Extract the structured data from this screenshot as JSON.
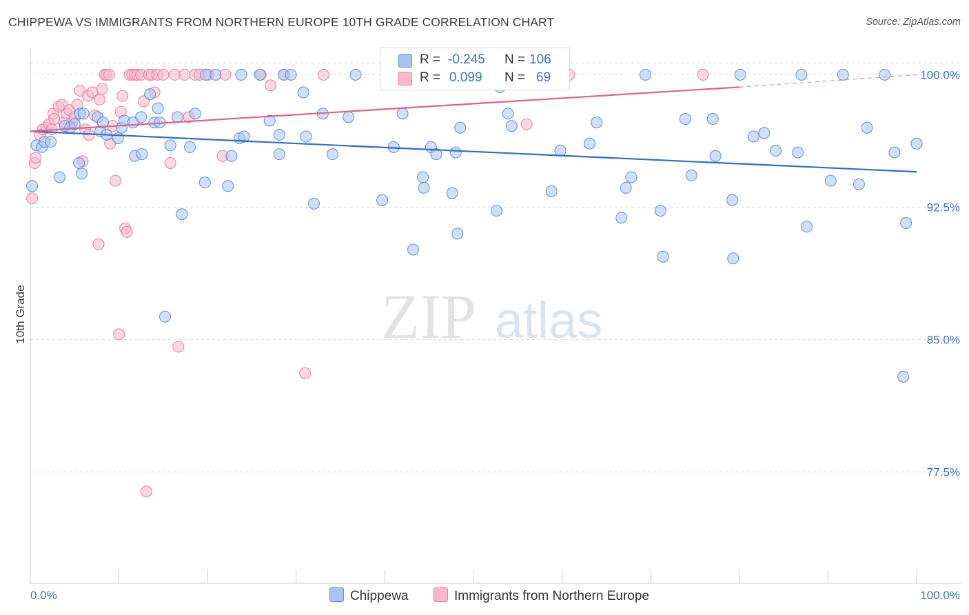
{
  "title": "CHIPPEWA VS IMMIGRANTS FROM NORTHERN EUROPE 10TH GRADE CORRELATION CHART",
  "source": "Source: ZipAtlas.com",
  "watermark": {
    "zip": "ZIP",
    "atlas": "atlas"
  },
  "colors": {
    "blue_fill": "#a9c5ee",
    "blue_stroke": "#5b8fd6",
    "blue_line": "#2b6ccc",
    "pink_fill": "#f6b8cb",
    "pink_stroke": "#e87ea0",
    "pink_line": "#e0608a",
    "tick_label": "#3c6fc4",
    "grid": "#d8d8d8"
  },
  "legend": {
    "rows": [
      {
        "r_label": "R =",
        "r_value": "-0.245",
        "n_label": "N =",
        "n_value": "106"
      },
      {
        "r_label": "R =",
        "r_value": "0.099",
        "n_label": "N =",
        "n_value": "69"
      }
    ],
    "series_names": [
      "Chippewa",
      "Immigrants from Northern Europe"
    ]
  },
  "chart_data": {
    "type": "scatter",
    "title": "CHIPPEWA VS IMMIGRANTS FROM NORTHERN EUROPE 10TH GRADE CORRELATION CHART",
    "xlabel": "",
    "ylabel": "10th Grade",
    "xlim": [
      0,
      100
    ],
    "ylim": [
      71.2,
      101.5
    ],
    "x_tick_labels": [
      "0.0%",
      "100.0%"
    ],
    "y_ticks": [
      77.5,
      85.0,
      92.5,
      100.0
    ],
    "y_tick_labels": [
      "77.5%",
      "85.0%",
      "92.5%",
      "100.0%"
    ],
    "grid": true,
    "legend_position": "top-center",
    "series": [
      {
        "name": "Chippewa",
        "color": "#a9c5ee",
        "trend": {
          "x": [
            0,
            100
          ],
          "y": [
            96.8,
            94.5
          ]
        },
        "points": [
          [
            0.2,
            93.7
          ],
          [
            0.7,
            96.0
          ],
          [
            1.3,
            95.9
          ],
          [
            1.6,
            96.2
          ],
          [
            2.3,
            96.2
          ],
          [
            3.3,
            94.2
          ],
          [
            3.9,
            97.1
          ],
          [
            4.5,
            97.0
          ],
          [
            5.0,
            97.2
          ],
          [
            5.5,
            95.0
          ],
          [
            5.6,
            97.8
          ],
          [
            5.8,
            94.4
          ],
          [
            6.0,
            97.8
          ],
          [
            7.6,
            97.6
          ],
          [
            7.9,
            96.8
          ],
          [
            8.2,
            97.3
          ],
          [
            8.6,
            96.6
          ],
          [
            9.9,
            96.4
          ],
          [
            10.3,
            97.0
          ],
          [
            10.6,
            97.4
          ],
          [
            11.6,
            97.3
          ],
          [
            11.8,
            95.4
          ],
          [
            12.5,
            97.6
          ],
          [
            12.6,
            95.5
          ],
          [
            13.5,
            98.9
          ],
          [
            14.0,
            97.3
          ],
          [
            14.4,
            98.1
          ],
          [
            14.6,
            97.3
          ],
          [
            15.2,
            86.3
          ],
          [
            15.8,
            96.0
          ],
          [
            16.6,
            97.6
          ],
          [
            17.1,
            92.1
          ],
          [
            18.0,
            95.9
          ],
          [
            18.6,
            97.8
          ],
          [
            19.8,
            100.0
          ],
          [
            19.7,
            93.9
          ],
          [
            20.9,
            100.0
          ],
          [
            22.3,
            93.7
          ],
          [
            22.7,
            95.4
          ],
          [
            23.6,
            96.4
          ],
          [
            23.8,
            100.0
          ],
          [
            24.1,
            96.5
          ],
          [
            25.9,
            100.0
          ],
          [
            27.0,
            97.4
          ],
          [
            28.1,
            96.6
          ],
          [
            28.1,
            95.5
          ],
          [
            28.6,
            100.0
          ],
          [
            29.4,
            100.0
          ],
          [
            30.8,
            99.0
          ],
          [
            31.1,
            96.5
          ],
          [
            32.0,
            92.7
          ],
          [
            33.0,
            97.8
          ],
          [
            34.1,
            95.5
          ],
          [
            35.9,
            97.6
          ],
          [
            36.7,
            100.0
          ],
          [
            39.7,
            92.9
          ],
          [
            41.5,
            100.0
          ],
          [
            41.0,
            95.9
          ],
          [
            42.0,
            97.8
          ],
          [
            43.2,
            90.1
          ],
          [
            44.3,
            94.2
          ],
          [
            44.4,
            93.6
          ],
          [
            45.2,
            95.9
          ],
          [
            45.8,
            95.5
          ],
          [
            47.6,
            93.3
          ],
          [
            48.2,
            91.0
          ],
          [
            48.5,
            97.0
          ],
          [
            48.0,
            95.6
          ],
          [
            52.6,
            92.3
          ],
          [
            53.0,
            99.3
          ],
          [
            54.3,
            97.1
          ],
          [
            53.9,
            97.8
          ],
          [
            54.6,
            100.0
          ],
          [
            58.8,
            93.4
          ],
          [
            59.8,
            95.7
          ],
          [
            63.1,
            96.1
          ],
          [
            63.9,
            97.3
          ],
          [
            66.7,
            91.9
          ],
          [
            67.2,
            93.6
          ],
          [
            67.8,
            94.2
          ],
          [
            69.4,
            100.0
          ],
          [
            71.1,
            92.3
          ],
          [
            71.4,
            89.7
          ],
          [
            73.9,
            97.5
          ],
          [
            74.6,
            94.3
          ],
          [
            77.0,
            97.5
          ],
          [
            77.3,
            95.4
          ],
          [
            79.2,
            92.9
          ],
          [
            79.3,
            89.6
          ],
          [
            80.1,
            100.0
          ],
          [
            81.6,
            96.5
          ],
          [
            82.8,
            96.7
          ],
          [
            84.1,
            95.7
          ],
          [
            86.6,
            95.6
          ],
          [
            87.0,
            100.0
          ],
          [
            87.6,
            91.4
          ],
          [
            90.3,
            94.0
          ],
          [
            91.7,
            100.0
          ],
          [
            93.5,
            93.8
          ],
          [
            94.4,
            97.0
          ],
          [
            96.4,
            100.0
          ],
          [
            97.5,
            95.6
          ],
          [
            98.5,
            82.9
          ],
          [
            98.8,
            91.6
          ],
          [
            100.0,
            96.1
          ]
        ]
      },
      {
        "name": "Immigrants from Northern Europe",
        "color": "#f6b8cb",
        "trend": {
          "x": [
            0,
            80
          ],
          "y": [
            96.8,
            99.3
          ],
          "dashed_to": [
            100,
            100.0
          ]
        },
        "points": [
          [
            0.2,
            93.0
          ],
          [
            0.5,
            95.0
          ],
          [
            0.6,
            95.3
          ],
          [
            1.1,
            96.6
          ],
          [
            1.4,
            96.9
          ],
          [
            1.8,
            97.0
          ],
          [
            2.1,
            97.2
          ],
          [
            2.4,
            96.9
          ],
          [
            2.6,
            97.8
          ],
          [
            2.7,
            97.5
          ],
          [
            3.2,
            98.2
          ],
          [
            3.6,
            98.3
          ],
          [
            3.8,
            97.3
          ],
          [
            4.1,
            97.8
          ],
          [
            4.4,
            98.0
          ],
          [
            4.7,
            97.3
          ],
          [
            5.0,
            97.6
          ],
          [
            5.3,
            98.3
          ],
          [
            5.6,
            99.1
          ],
          [
            5.9,
            95.1
          ],
          [
            6.2,
            96.9
          ],
          [
            6.5,
            98.8
          ],
          [
            6.6,
            96.6
          ],
          [
            7.0,
            99.0
          ],
          [
            7.3,
            97.7
          ],
          [
            7.7,
            90.4
          ],
          [
            7.8,
            98.6
          ],
          [
            8.1,
            99.2
          ],
          [
            8.4,
            100.0
          ],
          [
            8.6,
            100.0
          ],
          [
            8.9,
            100.0
          ],
          [
            9.0,
            96.1
          ],
          [
            9.3,
            97.1
          ],
          [
            9.6,
            94.0
          ],
          [
            10.0,
            85.3
          ],
          [
            10.2,
            97.9
          ],
          [
            10.4,
            98.8
          ],
          [
            10.7,
            91.3
          ],
          [
            10.9,
            91.1
          ],
          [
            11.2,
            100.0
          ],
          [
            11.5,
            100.0
          ],
          [
            11.8,
            100.0
          ],
          [
            12.1,
            100.0
          ],
          [
            12.5,
            100.0
          ],
          [
            12.8,
            98.5
          ],
          [
            13.1,
            76.4
          ],
          [
            13.4,
            100.0
          ],
          [
            13.7,
            100.0
          ],
          [
            14.0,
            99.0
          ],
          [
            14.3,
            100.0
          ],
          [
            15.0,
            100.0
          ],
          [
            15.8,
            95.0
          ],
          [
            16.3,
            100.0
          ],
          [
            16.7,
            84.6
          ],
          [
            17.4,
            100.0
          ],
          [
            17.9,
            97.6
          ],
          [
            18.6,
            100.0
          ],
          [
            19.1,
            100.0
          ],
          [
            20.1,
            100.0
          ],
          [
            21.7,
            95.4
          ],
          [
            22.0,
            100.0
          ],
          [
            26.0,
            100.0
          ],
          [
            27.1,
            99.4
          ],
          [
            28.6,
            100.0
          ],
          [
            31.0,
            83.1
          ],
          [
            33.1,
            100.0
          ],
          [
            56.0,
            97.2
          ],
          [
            60.8,
            100.0
          ],
          [
            75.9,
            100.0
          ]
        ]
      }
    ]
  }
}
